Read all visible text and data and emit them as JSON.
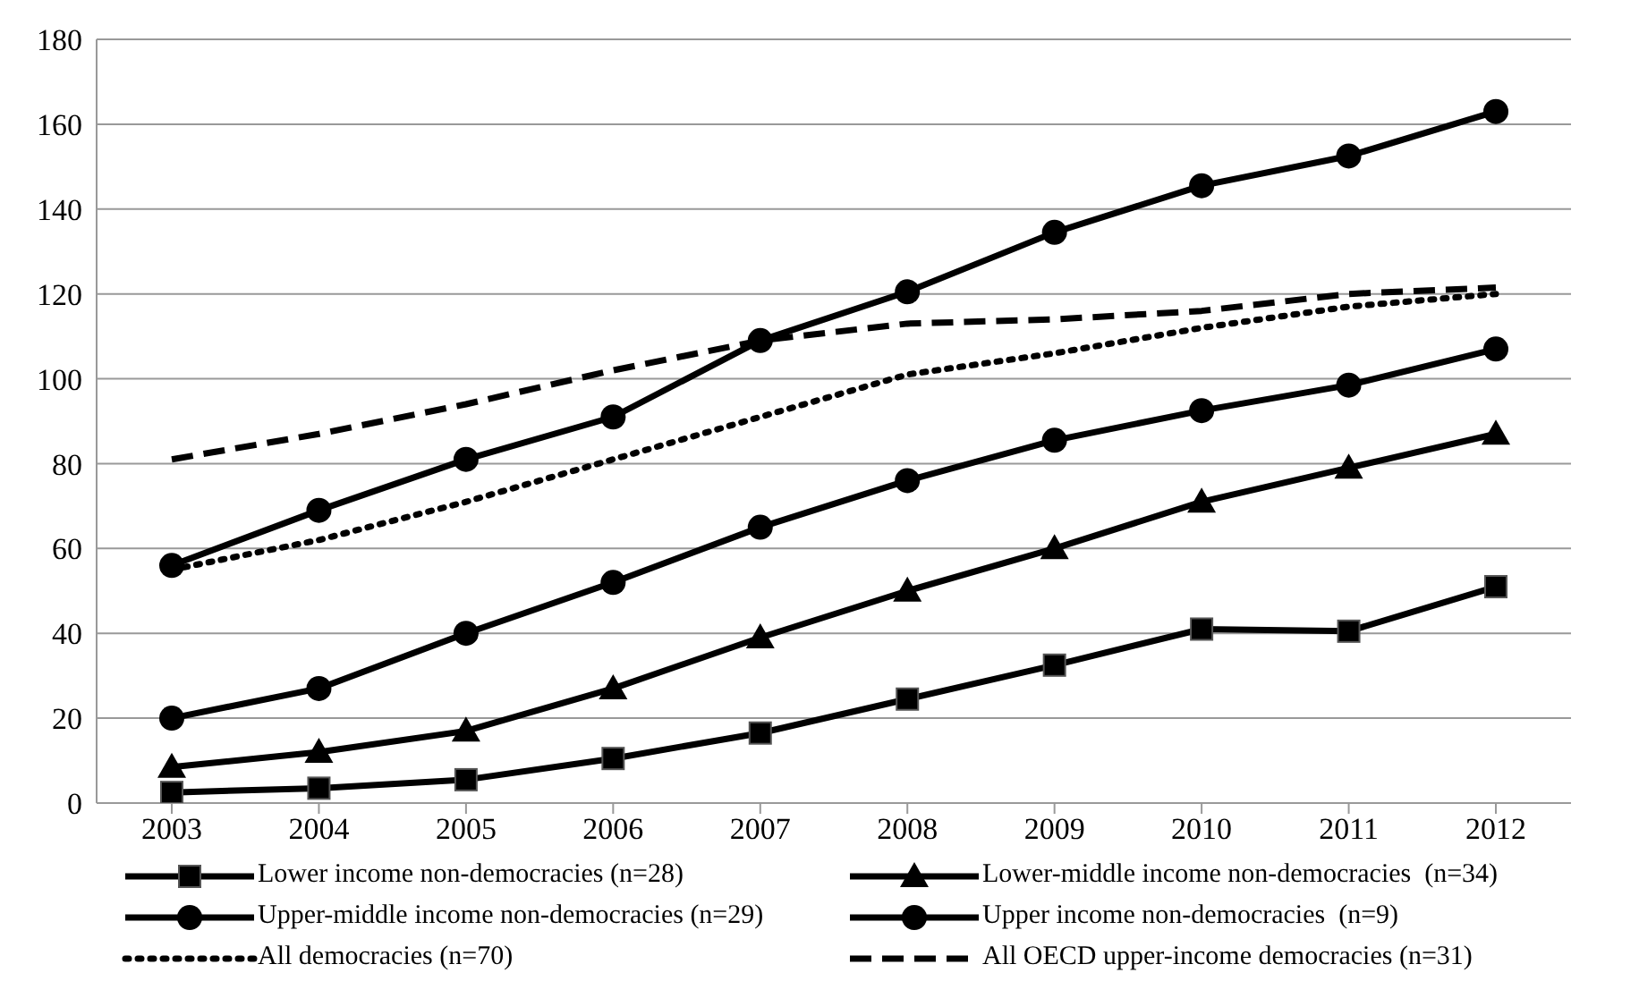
{
  "chart_data": {
    "type": "line",
    "categories": [
      "2003",
      "2004",
      "2005",
      "2006",
      "2007",
      "2008",
      "2009",
      "2010",
      "2011",
      "2012"
    ],
    "series": [
      {
        "name": "Lower income non-democracies (n=28)",
        "color": "#000000",
        "marker": "square",
        "line_style": "solid",
        "values": [
          2.5,
          3.5,
          5.5,
          10.5,
          16.5,
          24.5,
          32.5,
          41,
          40.5,
          51
        ]
      },
      {
        "name": "Lower-middle income non-democracies  (n=34)",
        "color": "#000000",
        "marker": "triangle",
        "line_style": "solid",
        "values": [
          8.5,
          12,
          17,
          27,
          39,
          50,
          60,
          71,
          79,
          87
        ]
      },
      {
        "name": "Upper-middle income non-democracies (n=29)",
        "color": "#000000",
        "marker": "circle",
        "line_style": "solid",
        "values": [
          20,
          27,
          40,
          52,
          65,
          76,
          85.5,
          92.5,
          98.5,
          107
        ]
      },
      {
        "name": "Upper income non-democracies  (n=9)",
        "color": "#000000",
        "marker": "circle",
        "line_style": "solid",
        "values": [
          56,
          69,
          81,
          91,
          109,
          120.5,
          134.5,
          145.5,
          152.5,
          163
        ]
      },
      {
        "name": "All democracies (n=70)",
        "color": "#000000",
        "marker": "none",
        "line_style": "dotted",
        "values": [
          55,
          62,
          71,
          81,
          91,
          101,
          106,
          112,
          117,
          120
        ]
      },
      {
        "name": "All OECD upper-income democracies (n=31)",
        "color": "#000000",
        "marker": "none",
        "line_style": "dashed",
        "values": [
          81,
          87,
          94,
          102,
          109,
          113,
          114,
          116,
          120,
          121.5
        ]
      }
    ],
    "ylim": [
      0,
      180
    ],
    "yticks": [
      0,
      20,
      40,
      60,
      80,
      100,
      120,
      140,
      160,
      180
    ],
    "grid": "y",
    "legend": "bottom"
  }
}
